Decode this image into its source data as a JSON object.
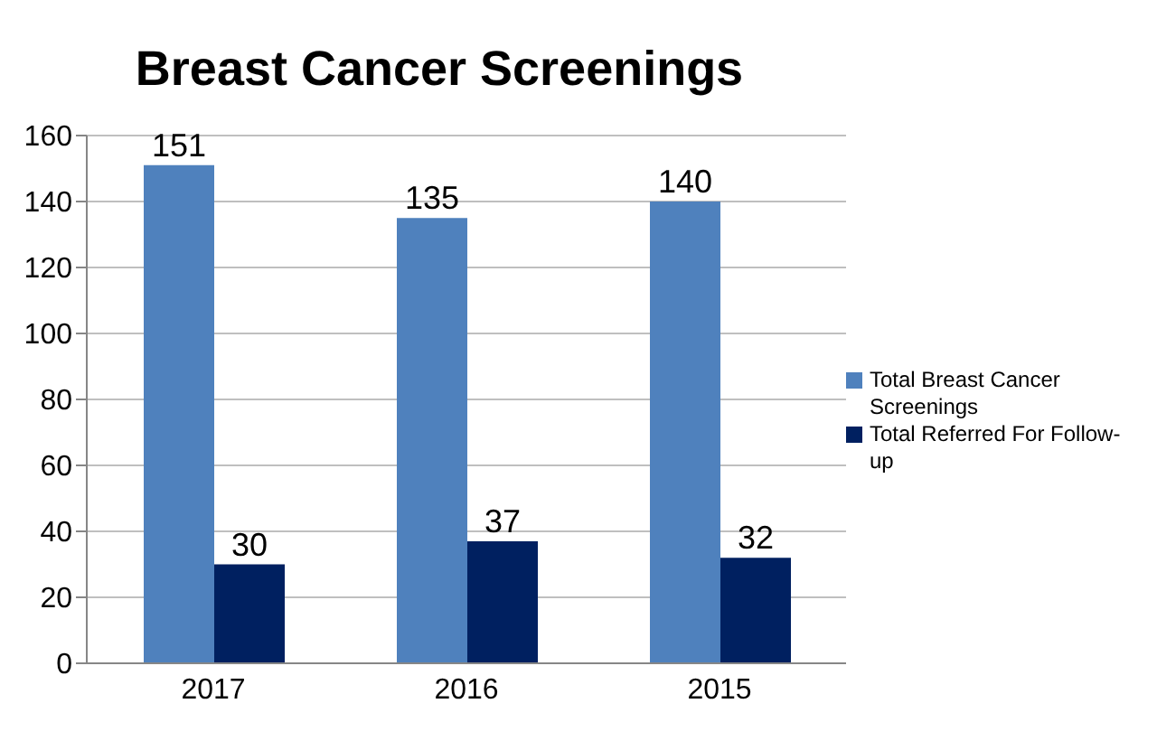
{
  "chart_data": {
    "type": "bar",
    "title": "Breast Cancer Screenings",
    "categories": [
      "2017",
      "2016",
      "2015"
    ],
    "series": [
      {
        "name": "Total Breast Cancer Screenings",
        "color": "#4f81bd",
        "values": [
          151,
          135,
          140
        ]
      },
      {
        "name": "Total Referred For Follow-up",
        "color": "#002060",
        "values": [
          30,
          37,
          32
        ]
      }
    ],
    "ylim": [
      0,
      160
    ],
    "yticks": [
      0,
      20,
      40,
      60,
      80,
      100,
      120,
      140,
      160
    ],
    "grid": "y",
    "legend": "right",
    "data_labels": true
  }
}
